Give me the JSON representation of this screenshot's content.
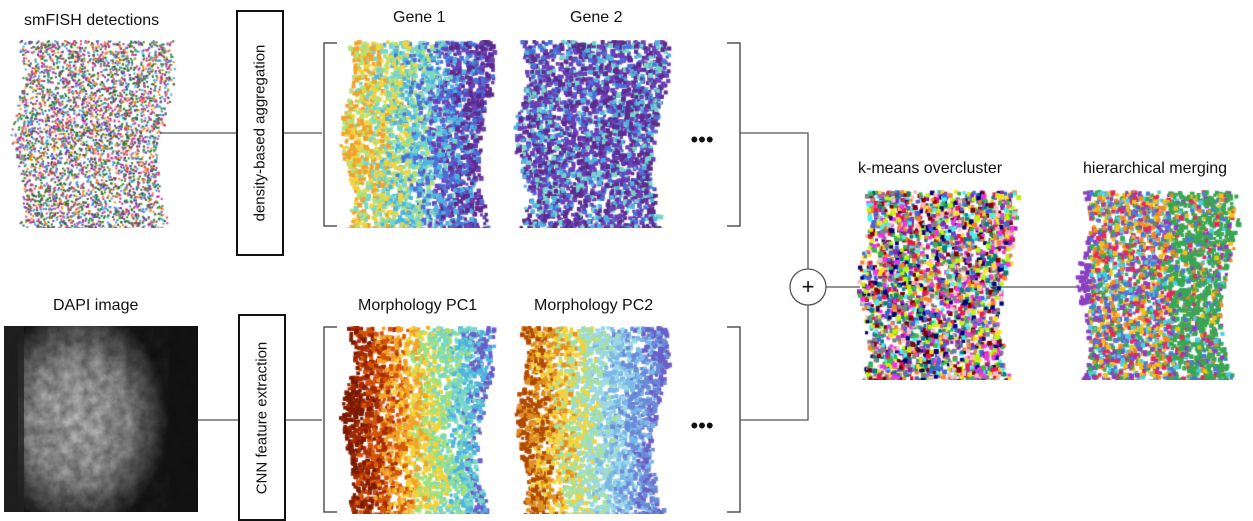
{
  "inputs": {
    "smfish_label": "smFISH detections",
    "dapi_label": "DAPI image"
  },
  "steps": {
    "density_label": "density-based aggregation",
    "cnn_label": "CNN feature extraction"
  },
  "feature_maps": {
    "gene1_label": "Gene 1",
    "gene2_label": "Gene 2",
    "morph1_label": "Morphology PC1",
    "morph2_label": "Morphology PC2",
    "ellipsis": "•••"
  },
  "combine_symbol": "+",
  "outputs": {
    "kmeans_label": "k-means overcluster",
    "merge_label": "hierarchical merging"
  },
  "colors": {
    "line": "#555555",
    "gene_palette": [
      "#5b2a8c",
      "#6a3fb5",
      "#4b6fd6",
      "#4fb3e0",
      "#77d6c8",
      "#b5e07a",
      "#f2d33c",
      "#f0a22a"
    ],
    "pc1_palette": [
      "#7a1a00",
      "#a52a00",
      "#d4550a",
      "#f0a22a",
      "#f2d33c",
      "#9fe080",
      "#77d6c8",
      "#4fb3e0",
      "#6a5fc8"
    ],
    "pc2_palette": [
      "#b04a00",
      "#e09020",
      "#f2d33c",
      "#a8e0a0",
      "#9ad8e8",
      "#7ab8e8",
      "#6a8ad6",
      "#6a5fc8"
    ],
    "smfish_palette": [
      "#2e8b3a",
      "#e0357a",
      "#3a9ee0",
      "#f08a20",
      "#7a2fa8",
      "#1f6b2a"
    ],
    "kmeans_palette": [
      "#e6194b",
      "#3cb44b",
      "#ffe119",
      "#4363d8",
      "#f58231",
      "#911eb4",
      "#46f0f0",
      "#f032e6",
      "#bcf60c",
      "#fabebe",
      "#008080",
      "#800000",
      "#000075",
      "#808080"
    ],
    "merge_palette": [
      "#f2c218",
      "#3aa655",
      "#e8265a",
      "#f08a20",
      "#8a3fc0",
      "#4a7ad8",
      "#46d0e0"
    ]
  }
}
